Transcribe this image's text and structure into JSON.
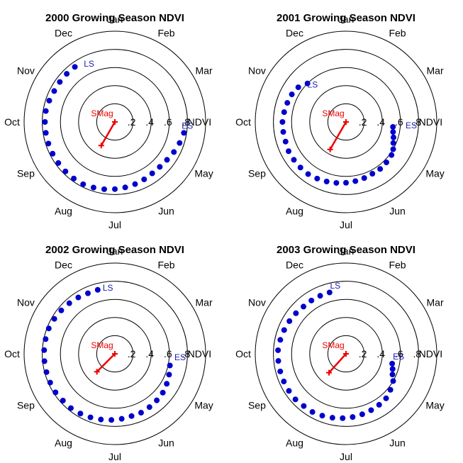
{
  "chart_data": [
    {
      "type": "polar-scatter",
      "title": "2000 Growing Season NDVI",
      "angular_labels": [
        "Jan",
        "Feb",
        "Mar",
        "Apr",
        "May",
        "Jun",
        "Jul",
        "Aug",
        "Sep",
        "Oct",
        "Nov",
        "Dec"
      ],
      "radial_ticks": [
        ".2",
        ".4",
        ".6",
        ".8"
      ],
      "radial_axis_label": "NDVI",
      "rmax": 1.0,
      "series": [
        {
          "name": "NDVI",
          "color": "#0000cc",
          "points": [
            {
              "month": 4.3,
              "r": 0.77
            },
            {
              "month": 4.6,
              "r": 0.75
            },
            {
              "month": 4.9,
              "r": 0.73
            },
            {
              "month": 5.2,
              "r": 0.71
            },
            {
              "month": 5.5,
              "r": 0.7
            },
            {
              "month": 5.8,
              "r": 0.7
            },
            {
              "month": 6.1,
              "r": 0.71
            },
            {
              "month": 6.4,
              "r": 0.72
            },
            {
              "month": 6.7,
              "r": 0.73
            },
            {
              "month": 7.0,
              "r": 0.74
            },
            {
              "month": 7.3,
              "r": 0.75
            },
            {
              "month": 7.6,
              "r": 0.76
            },
            {
              "month": 7.9,
              "r": 0.77
            },
            {
              "month": 8.2,
              "r": 0.77
            },
            {
              "month": 8.5,
              "r": 0.77
            },
            {
              "month": 8.8,
              "r": 0.77
            },
            {
              "month": 9.1,
              "r": 0.77
            },
            {
              "month": 9.4,
              "r": 0.77
            },
            {
              "month": 9.7,
              "r": 0.77
            },
            {
              "month": 10.0,
              "r": 0.77
            },
            {
              "month": 10.3,
              "r": 0.77
            },
            {
              "month": 10.6,
              "r": 0.76
            },
            {
              "month": 10.9,
              "r": 0.75
            },
            {
              "month": 11.2,
              "r": 0.75
            },
            {
              "month": 11.5,
              "r": 0.75
            },
            {
              "month": 11.8,
              "r": 0.75
            }
          ]
        }
      ],
      "ES": {
        "month": 4.1,
        "r": 0.8,
        "label": "ES"
      },
      "LS": {
        "month": 12.2,
        "r": 0.7,
        "label": "LS"
      },
      "SMag": {
        "label": "SMag",
        "month": 8.0,
        "r": 0.3
      }
    },
    {
      "type": "polar-scatter",
      "title": "2001 Growing Season NDVI",
      "angular_labels": [
        "Jan",
        "Feb",
        "Mar",
        "Apr",
        "May",
        "Jun",
        "Jul",
        "Aug",
        "Sep",
        "Oct",
        "Nov",
        "Dec"
      ],
      "radial_ticks": [
        ".2",
        ".4",
        ".6",
        ".8"
      ],
      "radial_axis_label": "NDVI",
      "rmax": 1.0,
      "series": [
        {
          "name": "NDVI",
          "color": "#0000cc",
          "points": [
            {
              "month": 4.2,
              "r": 0.52
            },
            {
              "month": 4.4,
              "r": 0.53
            },
            {
              "month": 4.6,
              "r": 0.55
            },
            {
              "month": 4.8,
              "r": 0.57
            },
            {
              "month": 5.0,
              "r": 0.6
            },
            {
              "month": 5.2,
              "r": 0.62
            },
            {
              "month": 5.5,
              "r": 0.63
            },
            {
              "month": 5.8,
              "r": 0.64
            },
            {
              "month": 6.1,
              "r": 0.64
            },
            {
              "month": 6.4,
              "r": 0.65
            },
            {
              "month": 6.7,
              "r": 0.66
            },
            {
              "month": 7.0,
              "r": 0.67
            },
            {
              "month": 7.3,
              "r": 0.68
            },
            {
              "month": 7.6,
              "r": 0.69
            },
            {
              "month": 7.9,
              "r": 0.7
            },
            {
              "month": 8.2,
              "r": 0.71
            },
            {
              "month": 8.5,
              "r": 0.71
            },
            {
              "month": 8.8,
              "r": 0.71
            },
            {
              "month": 9.1,
              "r": 0.71
            },
            {
              "month": 9.4,
              "r": 0.7
            },
            {
              "month": 9.7,
              "r": 0.7
            },
            {
              "month": 10.0,
              "r": 0.7
            },
            {
              "month": 10.3,
              "r": 0.69
            },
            {
              "month": 10.6,
              "r": 0.68
            },
            {
              "month": 10.9,
              "r": 0.67
            },
            {
              "month": 11.2,
              "r": 0.65
            },
            {
              "month": 11.5,
              "r": 0.6
            }
          ]
        }
      ],
      "ES": {
        "month": 4.1,
        "r": 0.72,
        "label": "ES"
      },
      "LS": {
        "month": 11.6,
        "r": 0.55,
        "label": "LS"
      },
      "SMag": {
        "label": "SMag",
        "month": 8.0,
        "r": 0.35
      }
    },
    {
      "type": "polar-scatter",
      "title": "2002 Growing Season NDVI",
      "angular_labels": [
        "Jan",
        "Feb",
        "Mar",
        "Apr",
        "May",
        "Jun",
        "Jul",
        "Aug",
        "Sep",
        "Oct",
        "Nov",
        "Dec"
      ],
      "radial_ticks": [
        ".2",
        ".4",
        ".6",
        ".8"
      ],
      "radial_axis_label": "NDVI",
      "rmax": 1.0,
      "series": [
        {
          "name": "NDVI",
          "color": "#0000cc",
          "points": [
            {
              "month": 4.4,
              "r": 0.62
            },
            {
              "month": 4.7,
              "r": 0.64
            },
            {
              "month": 5.0,
              "r": 0.66
            },
            {
              "month": 5.3,
              "r": 0.68
            },
            {
              "month": 5.6,
              "r": 0.69
            },
            {
              "month": 5.9,
              "r": 0.7
            },
            {
              "month": 6.2,
              "r": 0.71
            },
            {
              "month": 6.5,
              "r": 0.71
            },
            {
              "month": 6.8,
              "r": 0.72
            },
            {
              "month": 7.1,
              "r": 0.73
            },
            {
              "month": 7.4,
              "r": 0.74
            },
            {
              "month": 7.7,
              "r": 0.75
            },
            {
              "month": 8.0,
              "r": 0.76
            },
            {
              "month": 8.3,
              "r": 0.77
            },
            {
              "month": 8.6,
              "r": 0.77
            },
            {
              "month": 8.9,
              "r": 0.78
            },
            {
              "month": 9.2,
              "r": 0.78
            },
            {
              "month": 9.5,
              "r": 0.78
            },
            {
              "month": 9.8,
              "r": 0.78
            },
            {
              "month": 10.1,
              "r": 0.78
            },
            {
              "month": 10.4,
              "r": 0.78
            },
            {
              "month": 10.7,
              "r": 0.78
            },
            {
              "month": 11.0,
              "r": 0.77
            },
            {
              "month": 11.3,
              "r": 0.76
            },
            {
              "month": 11.6,
              "r": 0.75
            },
            {
              "month": 11.9,
              "r": 0.74
            },
            {
              "month": 12.2,
              "r": 0.73
            },
            {
              "month": 12.5,
              "r": 0.73
            }
          ]
        }
      ],
      "ES": {
        "month": 4.1,
        "r": 0.72,
        "label": "ES"
      },
      "LS": {
        "month": 12.8,
        "r": 0.73,
        "label": "LS"
      },
      "SMag": {
        "label": "SMag",
        "month": 8.5,
        "r": 0.28
      }
    },
    {
      "type": "polar-scatter",
      "title": "2003 Growing Season NDVI",
      "angular_labels": [
        "Jan",
        "Feb",
        "Mar",
        "Apr",
        "May",
        "Jun",
        "Jul",
        "Aug",
        "Sep",
        "Oct",
        "Nov",
        "Dec"
      ],
      "radial_ticks": [
        ".2",
        ".4",
        ".6",
        ".8"
      ],
      "radial_axis_label": "NDVI",
      "rmax": 1.0,
      "series": [
        {
          "name": "NDVI",
          "color": "#0000cc",
          "points": [
            {
              "month": 4.4,
              "r": 0.52
            },
            {
              "month": 4.6,
              "r": 0.54
            },
            {
              "month": 4.8,
              "r": 0.56
            },
            {
              "month": 5.0,
              "r": 0.6
            },
            {
              "month": 5.3,
              "r": 0.63
            },
            {
              "month": 5.6,
              "r": 0.66
            },
            {
              "month": 5.9,
              "r": 0.67
            },
            {
              "month": 6.2,
              "r": 0.68
            },
            {
              "month": 6.5,
              "r": 0.69
            },
            {
              "month": 6.8,
              "r": 0.7
            },
            {
              "month": 7.1,
              "r": 0.71
            },
            {
              "month": 7.4,
              "r": 0.72
            },
            {
              "month": 7.7,
              "r": 0.73
            },
            {
              "month": 8.0,
              "r": 0.74
            },
            {
              "month": 8.3,
              "r": 0.74
            },
            {
              "month": 8.6,
              "r": 0.75
            },
            {
              "month": 8.9,
              "r": 0.75
            },
            {
              "month": 9.2,
              "r": 0.75
            },
            {
              "month": 9.5,
              "r": 0.75
            },
            {
              "month": 9.8,
              "r": 0.75
            },
            {
              "month": 10.1,
              "r": 0.75
            },
            {
              "month": 10.4,
              "r": 0.74
            },
            {
              "month": 10.7,
              "r": 0.73
            },
            {
              "month": 11.0,
              "r": 0.72
            },
            {
              "month": 11.3,
              "r": 0.71
            },
            {
              "month": 11.6,
              "r": 0.7
            },
            {
              "month": 11.9,
              "r": 0.7
            },
            {
              "month": 12.2,
              "r": 0.7
            },
            {
              "month": 12.5,
              "r": 0.7
            }
          ]
        }
      ],
      "ES": {
        "month": 4.1,
        "r": 0.58,
        "label": "ES"
      },
      "LS": {
        "month": 12.7,
        "r": 0.76,
        "label": "LS"
      },
      "SMag": {
        "label": "SMag",
        "month": 8.4,
        "r": 0.28
      }
    }
  ]
}
